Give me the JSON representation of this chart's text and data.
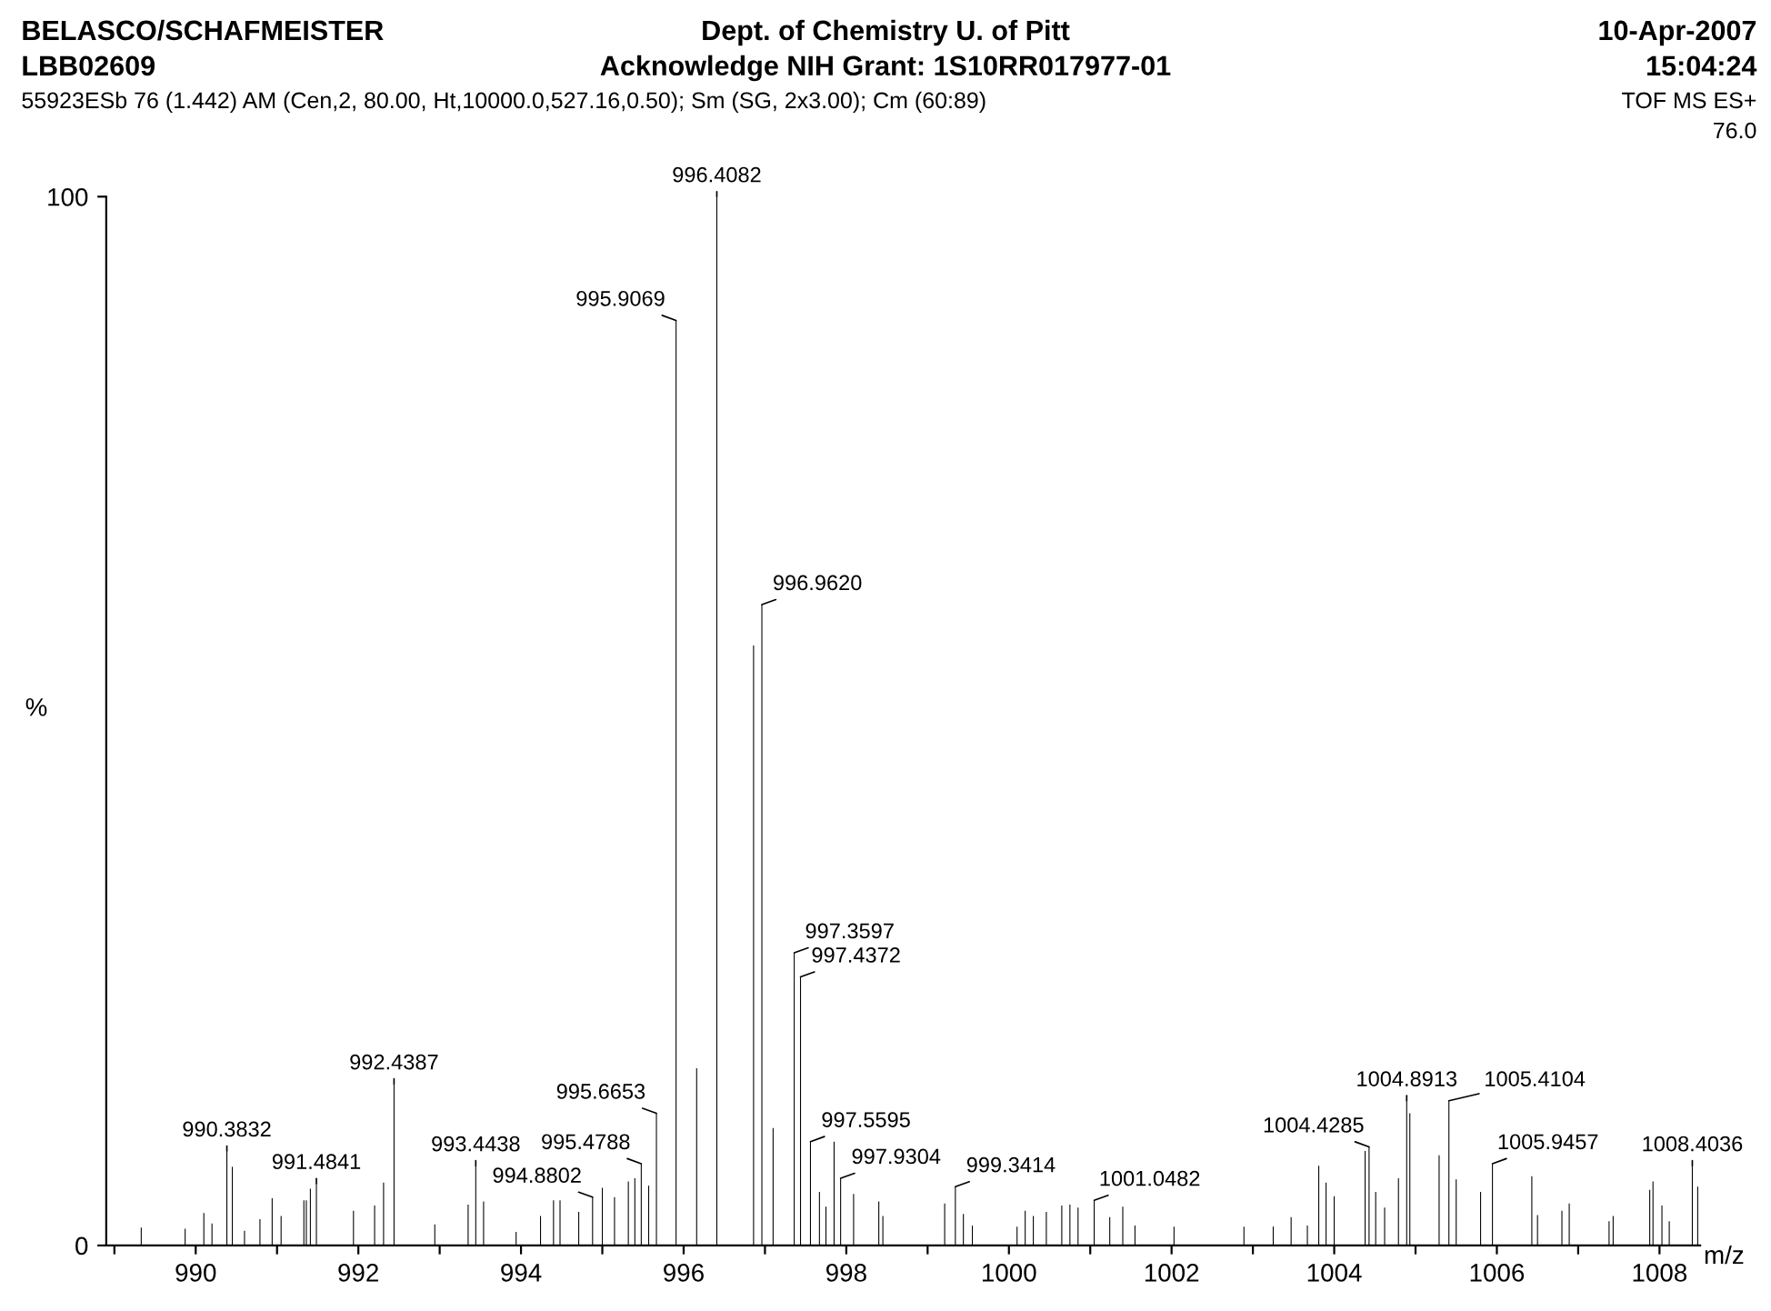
{
  "chart_data": {
    "type": "bar",
    "title": "Dept. of Chemistry U. of Pitt",
    "subtitle": "Acknowledge NIH Grant: 1S10RR017977-01",
    "xlabel": "m/z",
    "ylabel": "%",
    "x": [
      989.33,
      989.87,
      990.1,
      990.2,
      990.3832,
      990.45,
      990.6,
      990.79,
      990.94,
      991.05,
      991.33,
      991.36,
      991.41,
      991.4841,
      991.94,
      992.2,
      992.31,
      992.4387,
      992.94,
      993.35,
      993.4438,
      993.54,
      993.94,
      994.24,
      994.4,
      994.48,
      994.71,
      994.8802,
      995.0,
      995.15,
      995.32,
      995.4,
      995.4788,
      995.57,
      995.6653,
      995.9069,
      996.16,
      996.4082,
      996.86,
      996.962,
      997.1,
      997.3597,
      997.4372,
      997.5595,
      997.67,
      997.75,
      997.85,
      997.9304,
      998.09,
      998.4,
      998.45,
      999.21,
      999.3414,
      999.44,
      999.55,
      1000.1,
      1000.2,
      1000.3,
      1000.46,
      1000.65,
      1000.75,
      1000.85,
      1001.0482,
      1001.24,
      1001.4,
      1001.55,
      1002.03,
      1002.89,
      1003.25,
      1003.47,
      1003.67,
      1003.81,
      1003.9,
      1004.0,
      1004.38,
      1004.4285,
      1004.51,
      1004.62,
      1004.79,
      1004.8913,
      1004.93,
      1005.29,
      1005.4104,
      1005.5,
      1005.8,
      1005.9457,
      1006.43,
      1006.5,
      1006.8,
      1006.89,
      1007.38,
      1007.43,
      1007.88,
      1007.92,
      1008.03,
      1008.12,
      1008.4036,
      1008.47
    ],
    "series": [
      {
        "color": "#000000",
        "values": [
          1.7,
          1.6,
          3.1,
          2.1,
          9.0,
          7.5,
          1.4,
          2.5,
          4.5,
          2.8,
          4.3,
          4.3,
          5.4,
          5.9,
          3.3,
          3.8,
          6.0,
          15.4,
          2.0,
          3.9,
          7.6,
          4.2,
          1.3,
          2.8,
          4.3,
          4.3,
          3.2,
          4.6,
          5.5,
          4.6,
          6.1,
          6.4,
          7.8,
          5.7,
          12.6,
          88.2,
          16.9,
          100,
          57.2,
          61.1,
          11.2,
          27.9,
          25.6,
          9.9,
          5.1,
          3.7,
          9.9,
          6.4,
          4.9,
          4.2,
          2.8,
          4.0,
          5.6,
          3.0,
          1.9,
          1.8,
          3.3,
          2.8,
          3.2,
          3.8,
          3.9,
          3.6,
          4.3,
          2.7,
          3.7,
          1.9,
          1.8,
          1.8,
          1.8,
          2.7,
          1.9,
          7.6,
          6.0,
          4.7,
          9.0,
          9.4,
          5.1,
          3.6,
          6.4,
          13.8,
          12.6,
          8.6,
          13.8,
          6.3,
          5.1,
          7.8,
          6.6,
          2.9,
          3.3,
          4.0,
          2.3,
          2.8,
          5.3,
          6.1,
          3.8,
          2.3,
          7.6,
          5.6
        ]
      }
    ],
    "xlim": [
      988.9,
      1008.5
    ],
    "xticks": [
      {
        "value": 989,
        "label": null
      },
      990,
      {
        "value": 991,
        "label": null
      },
      992,
      {
        "value": 993,
        "label": null
      },
      994,
      {
        "value": 995,
        "label": null
      },
      996,
      {
        "value": 997,
        "label": null
      },
      998,
      {
        "value": 999,
        "label": null
      },
      1000,
      {
        "value": 1001,
        "label": null
      },
      1002,
      {
        "value": 1003,
        "label": null
      },
      1004,
      {
        "value": 1005,
        "label": null
      },
      1006,
      {
        "value": 1007,
        "label": null
      },
      1008
    ],
    "ylim": [
      0,
      100
    ],
    "yticks": [
      0,
      100
    ],
    "grid": false,
    "annotations": [
      "BELASCO/SCHAFMEISTER",
      "LBB02609",
      "10-Apr-2007",
      "15:04:24",
      "TOF MS ES+",
      "76.0",
      "55923ESb 76 (1.442) AM (Cen,2, 80.00, Ht,10000.0,527.16,0.50); Sm (SG, 2x3.00); Cm (60:89)",
      {
        "text": "990.3832",
        "x": 990.3832,
        "y": 9.0
      },
      {
        "text": "991.4841",
        "x": 991.4841,
        "y": 5.9
      },
      {
        "text": "992.4387",
        "x": 992.4387,
        "y": 15.4
      },
      {
        "text": "993.4438",
        "x": 993.4438,
        "y": 7.6
      },
      {
        "text": "994.8802",
        "x": 994.8802,
        "y": 4.6
      },
      {
        "text": "995.4788",
        "x": 995.4788,
        "y": 7.8
      },
      {
        "text": "995.6653",
        "x": 995.6653,
        "y": 12.6
      },
      {
        "text": "995.9069",
        "x": 995.9069,
        "y": 88.2
      },
      {
        "text": "996.4082",
        "x": 996.4082,
        "y": 100
      },
      {
        "text": "996.9620",
        "x": 996.962,
        "y": 61.1
      },
      {
        "text": "997.3597",
        "x": 997.3597,
        "y": 27.9
      },
      {
        "text": "997.4372",
        "x": 997.4372,
        "y": 25.6
      },
      {
        "text": "997.5595",
        "x": 997.5595,
        "y": 9.9
      },
      {
        "text": "997.9304",
        "x": 997.9304,
        "y": 6.4
      },
      {
        "text": "999.3414",
        "x": 999.3414,
        "y": 5.6
      },
      {
        "text": "1001.0482",
        "x": 1001.0482,
        "y": 4.3
      },
      {
        "text": "1004.4285",
        "x": 1004.4285,
        "y": 9.4
      },
      {
        "text": "1004.8913",
        "x": 1004.8913,
        "y": 13.8
      },
      {
        "text": "1005.4104",
        "x": 1005.4104,
        "y": 13.8
      },
      {
        "text": "1005.9457",
        "x": 1005.9457,
        "y": 7.8
      },
      {
        "text": "1008.4036",
        "x": 1008.4036,
        "y": 7.6
      }
    ]
  }
}
